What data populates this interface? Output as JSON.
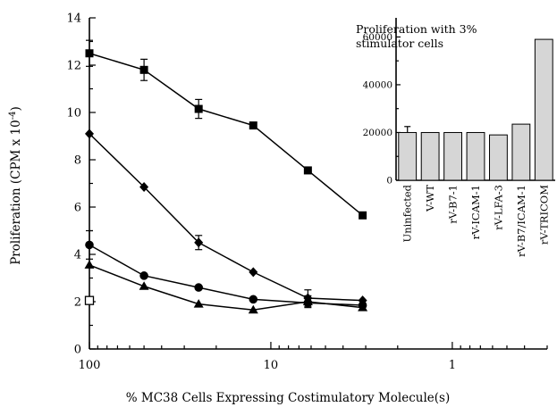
{
  "chart_data": [
    {
      "type": "line",
      "xlabel": "% MC38 Cells Expressing Costimulatory Molecule(s)",
      "ylabel": "Proliferation (CPM x 10",
      "ylabel_exponent": "-4",
      "ylabel_close": ")",
      "x_scale": "log",
      "x_reversed": true,
      "xlim": [
        100,
        0.3
      ],
      "ylim": [
        0,
        14
      ],
      "x_ticks": [
        100,
        10,
        1
      ],
      "x_tick_labels": [
        "100",
        "10",
        "1"
      ],
      "y_ticks": [
        0,
        2,
        4,
        6,
        8,
        10,
        12,
        14
      ],
      "y_tick_labels": [
        "0",
        "2",
        "4",
        "6",
        "8",
        "10",
        "12",
        "14"
      ],
      "grid": false,
      "series": [
        {
          "marker": "square",
          "x": [
            100,
            50,
            25,
            12.5,
            6.25,
            3.12
          ],
          "y": [
            12.5,
            11.8,
            10.15,
            9.45,
            7.55,
            5.65
          ],
          "error": [
            0.55,
            0.45,
            0.4,
            0,
            0,
            0
          ]
        },
        {
          "marker": "diamond",
          "x": [
            100,
            50,
            25,
            12.5,
            6.25,
            3.12
          ],
          "y": [
            9.1,
            6.85,
            4.5,
            3.25,
            2.15,
            2.05
          ],
          "error": [
            0,
            0,
            0.3,
            0,
            0.35,
            0
          ]
        },
        {
          "marker": "circle",
          "x": [
            100,
            50,
            25,
            12.5,
            6.25,
            3.12
          ],
          "y": [
            4.4,
            3.1,
            2.6,
            2.1,
            1.95,
            1.85
          ],
          "error": [
            0.6,
            0,
            0,
            0,
            0,
            0
          ]
        },
        {
          "marker": "triangle",
          "x": [
            100,
            50,
            25,
            12.5,
            6.25,
            3.12
          ],
          "y": [
            3.55,
            2.65,
            1.9,
            1.65,
            2.0,
            1.75
          ],
          "error": [
            0,
            0,
            0,
            0,
            0.25,
            0
          ]
        },
        {
          "marker": "open-square",
          "x": [
            100
          ],
          "y": [
            2.05
          ],
          "error": [
            0
          ]
        }
      ]
    },
    {
      "type": "bar",
      "title": "Proliferation with 3% stimulator cells",
      "title_lines": [
        "Proliferation with 3%",
        "stimulator cells"
      ],
      "categories": [
        "Uninfected",
        "V-WT",
        "rV-B7-1",
        "rV-ICAM-1",
        "rV-LFA-3",
        "rV-B7/ICAM-1",
        "rV-TRICOM"
      ],
      "values": [
        20000,
        20000,
        20000,
        20000,
        19000,
        23500,
        59000
      ],
      "error": [
        2500,
        0,
        0,
        0,
        0,
        0,
        0
      ],
      "ylim": [
        0,
        68000
      ],
      "y_ticks": [
        0,
        20000,
        40000,
        60000
      ],
      "y_tick_labels": [
        "0",
        "20000",
        "40000",
        "60000"
      ],
      "bar_color": "#d6d6d6",
      "grid": false
    }
  ]
}
